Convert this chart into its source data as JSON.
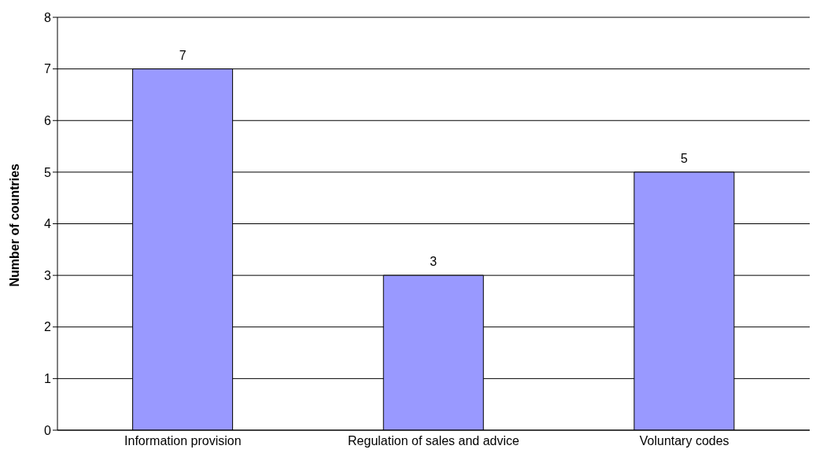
{
  "chart_data": {
    "type": "bar",
    "ylabel": "Number of countries",
    "categories": [
      "Information provision",
      "Regulation of sales and advice",
      "Voluntary codes"
    ],
    "values": [
      7,
      3,
      5
    ],
    "color": "#9999ff",
    "ylim": [
      0,
      8
    ],
    "yticks": [
      0,
      1,
      2,
      3,
      4,
      5,
      6,
      7,
      8
    ],
    "grid": "y",
    "data_labels": true
  }
}
